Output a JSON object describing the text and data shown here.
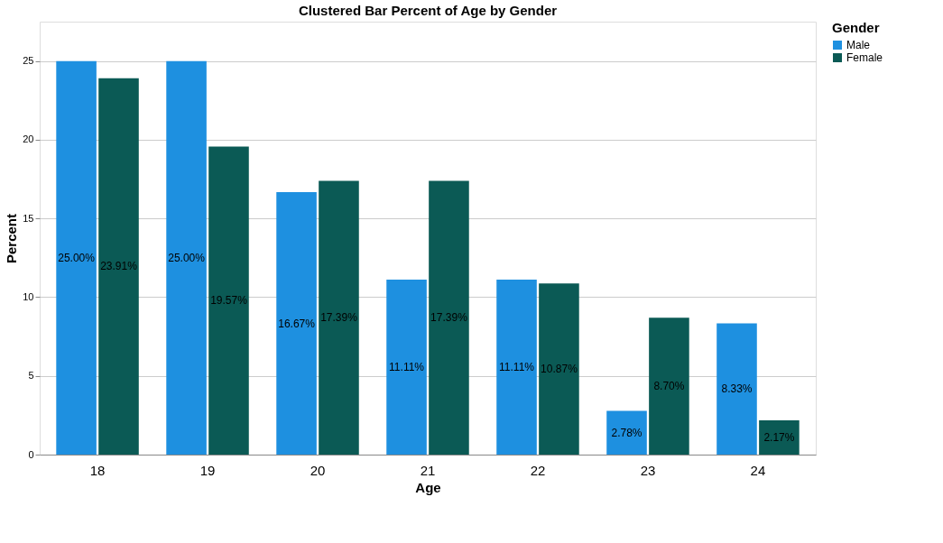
{
  "chart_data": {
    "type": "bar",
    "title": "Clustered Bar Percent of Age by Gender",
    "xlabel": "Age",
    "ylabel": "Percent",
    "legend_title": "Gender",
    "categories": [
      "18",
      "19",
      "20",
      "21",
      "22",
      "23",
      "24"
    ],
    "series": [
      {
        "name": "Male",
        "color": "#1e90e0",
        "values": [
          25,
          25,
          16.67,
          11.11,
          11.11,
          2.78,
          8.33
        ],
        "value_labels": [
          "25.00%",
          "25.00%",
          "16.67%",
          "11.11%",
          "11.11%",
          "2.78%",
          "8.33%"
        ]
      },
      {
        "name": "Female",
        "color": "#0b5a55",
        "values": [
          23.91,
          19.57,
          17.39,
          17.39,
          10.87,
          8.7,
          2.17
        ],
        "value_labels": [
          "23.91%",
          "19.57%",
          "17.39%",
          "17.39%",
          "10.87%",
          "8.70%",
          "2.17%"
        ]
      }
    ],
    "ylim": [
      0,
      27.5
    ],
    "yticks": [
      0,
      5,
      10,
      15,
      20,
      25
    ],
    "grid": "y",
    "legend": "top right"
  }
}
